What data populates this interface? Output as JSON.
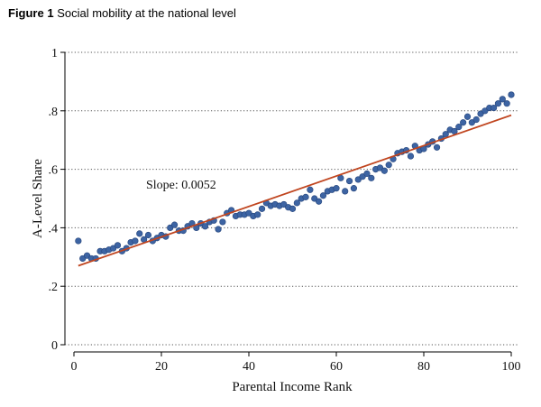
{
  "figure": {
    "label": "Figure 1",
    "caption": "Social mobility at the national level"
  },
  "colors": {
    "points": "#3d64a3",
    "point_edge": "#27467c",
    "fit_line": "#c0451f",
    "grid": "#555555",
    "axis": "#000000"
  },
  "chart_data": {
    "type": "scatter",
    "title": "Social mobility at the national level",
    "xlabel": "Parental Income Rank",
    "ylabel": "A-Level Share",
    "xlim": [
      0,
      100
    ],
    "ylim": [
      0,
      1
    ],
    "x_ticks": [
      0,
      20,
      40,
      60,
      80,
      100
    ],
    "x_tick_labels": [
      "0",
      "20",
      "40",
      "60",
      "80",
      "100"
    ],
    "y_ticks": [
      0,
      0.2,
      0.4,
      0.6,
      0.8,
      1
    ],
    "y_tick_labels": [
      "0",
      ".2",
      ".4",
      ".6",
      ".8",
      "1"
    ],
    "grid": "horizontal dotted",
    "annotation": "Slope: 0.0052",
    "fit_line": {
      "x": [
        1,
        100
      ],
      "y": [
        0.27,
        0.785
      ]
    },
    "points": {
      "x": [
        1,
        2,
        3,
        4,
        5,
        6,
        7,
        8,
        9,
        10,
        11,
        12,
        13,
        14,
        15,
        16,
        17,
        18,
        19,
        20,
        21,
        22,
        23,
        24,
        25,
        26,
        27,
        28,
        29,
        30,
        31,
        32,
        33,
        34,
        35,
        36,
        37,
        38,
        39,
        40,
        41,
        42,
        43,
        44,
        45,
        46,
        47,
        48,
        49,
        50,
        51,
        52,
        53,
        54,
        55,
        56,
        57,
        58,
        59,
        60,
        61,
        62,
        63,
        64,
        65,
        66,
        67,
        68,
        69,
        70,
        71,
        72,
        73,
        74,
        75,
        76,
        77,
        78,
        79,
        80,
        81,
        82,
        83,
        84,
        85,
        86,
        87,
        88,
        89,
        90,
        91,
        92,
        93,
        94,
        95,
        96,
        97,
        98,
        99,
        100
      ],
      "y": [
        0.355,
        0.295,
        0.305,
        0.295,
        0.295,
        0.32,
        0.32,
        0.325,
        0.33,
        0.34,
        0.32,
        0.33,
        0.35,
        0.355,
        0.38,
        0.36,
        0.375,
        0.355,
        0.365,
        0.375,
        0.37,
        0.4,
        0.41,
        0.39,
        0.39,
        0.405,
        0.415,
        0.4,
        0.415,
        0.405,
        0.42,
        0.425,
        0.395,
        0.42,
        0.45,
        0.46,
        0.44,
        0.445,
        0.445,
        0.45,
        0.44,
        0.445,
        0.465,
        0.485,
        0.475,
        0.48,
        0.475,
        0.48,
        0.47,
        0.465,
        0.485,
        0.5,
        0.505,
        0.53,
        0.5,
        0.49,
        0.51,
        0.525,
        0.53,
        0.535,
        0.57,
        0.525,
        0.56,
        0.535,
        0.565,
        0.575,
        0.585,
        0.57,
        0.6,
        0.605,
        0.595,
        0.615,
        0.635,
        0.655,
        0.66,
        0.665,
        0.645,
        0.68,
        0.665,
        0.67,
        0.685,
        0.695,
        0.675,
        0.705,
        0.72,
        0.735,
        0.73,
        0.745,
        0.76,
        0.78,
        0.76,
        0.77,
        0.79,
        0.8,
        0.81,
        0.81,
        0.825,
        0.84,
        0.825,
        0.855
      ]
    }
  }
}
